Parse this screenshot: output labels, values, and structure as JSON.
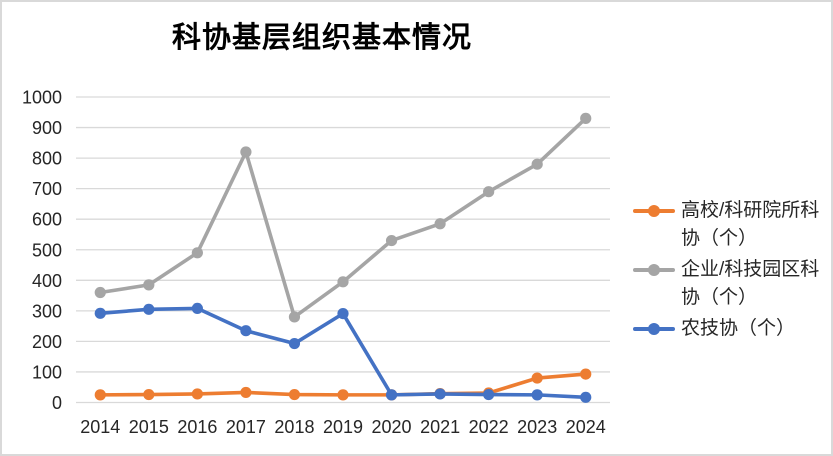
{
  "chart_data": {
    "type": "line",
    "title": "科协基层组织基本情况",
    "x": [
      "2014",
      "2015",
      "2016",
      "2017",
      "2018",
      "2019",
      "2020",
      "2021",
      "2022",
      "2023",
      "2024"
    ],
    "series": [
      {
        "name": "高校/科研院所科协（个）",
        "color": "#ED7D31",
        "values": [
          25,
          26,
          28,
          33,
          26,
          25,
          25,
          29,
          31,
          80,
          93
        ]
      },
      {
        "name": "企业/科技园区科协（个）",
        "color": "#A5A5A5",
        "values": [
          360,
          385,
          490,
          820,
          280,
          395,
          530,
          585,
          690,
          780,
          930
        ]
      },
      {
        "name": "农技协（个）",
        "color": "#4472C4",
        "values": [
          292,
          305,
          308,
          235,
          193,
          291,
          25,
          28,
          26,
          25,
          17
        ]
      }
    ],
    "ylim": [
      0,
      1000
    ],
    "y_ticks": [
      0,
      100,
      200,
      300,
      400,
      500,
      600,
      700,
      800,
      900,
      1000
    ],
    "grid": true,
    "legend_position": "right",
    "gridline_color": "#d9d9d9",
    "axis_label_color": "#262626"
  }
}
